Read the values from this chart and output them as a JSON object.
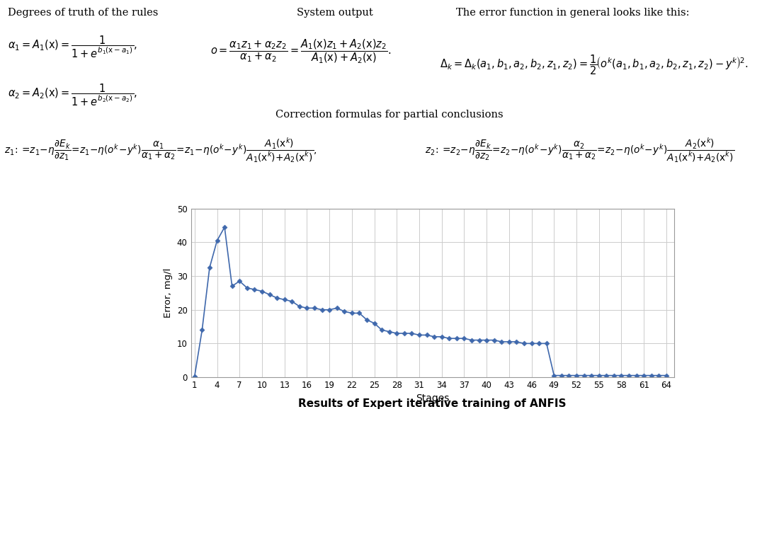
{
  "title": "Results of Expert iterative training of ANFIS",
  "xlabel": "Stages",
  "ylabel": "Error, mg/l",
  "ylim": [
    0,
    50
  ],
  "yticks": [
    0,
    10,
    20,
    30,
    40,
    50
  ],
  "xticks": [
    1,
    4,
    7,
    10,
    13,
    16,
    19,
    22,
    25,
    28,
    31,
    34,
    37,
    40,
    43,
    46,
    49,
    52,
    55,
    58,
    61,
    64
  ],
  "line_color": "#3F68AC",
  "marker_color": "#3F68AC",
  "background_color": "#ffffff",
  "stages": [
    1,
    2,
    3,
    4,
    5,
    6,
    7,
    8,
    9,
    10,
    11,
    12,
    13,
    14,
    15,
    16,
    17,
    18,
    19,
    20,
    21,
    22,
    23,
    24,
    25,
    26,
    27,
    28,
    29,
    30,
    31,
    32,
    33,
    34,
    35,
    36,
    37,
    38,
    39,
    40,
    41,
    42,
    43,
    44,
    45,
    46,
    47,
    48,
    49,
    50,
    51,
    52,
    53,
    54,
    55,
    56,
    57,
    58,
    59,
    60,
    61,
    62,
    63,
    64
  ],
  "errors": [
    0.3,
    14,
    32.5,
    40.5,
    44.5,
    27,
    28.5,
    26.5,
    26,
    25.5,
    24.5,
    23.5,
    23,
    22.5,
    21,
    20.5,
    20.5,
    20,
    20,
    20.5,
    19.5,
    19,
    19,
    17,
    16,
    14,
    13.5,
    13,
    13,
    13,
    12.5,
    12.5,
    12,
    12,
    11.5,
    11.5,
    11.5,
    11,
    11,
    11,
    11,
    10.5,
    10.5,
    10.5,
    10,
    10,
    10,
    10,
    0.5,
    0.5,
    0.5,
    0.5,
    0.5,
    0.5,
    0.5,
    0.5,
    0.5,
    0.5,
    0.5,
    0.5,
    0.5,
    0.5,
    0.5,
    0.5
  ],
  "text_color": "#000000",
  "formula_color": "#000000",
  "grid_color": "#cccccc",
  "heading_degrees": "Degrees of truth of the rules",
  "heading_system": "System output",
  "heading_error": "The error function in general looks like this:",
  "heading_correction": "Correction formulas for partial conclusions"
}
